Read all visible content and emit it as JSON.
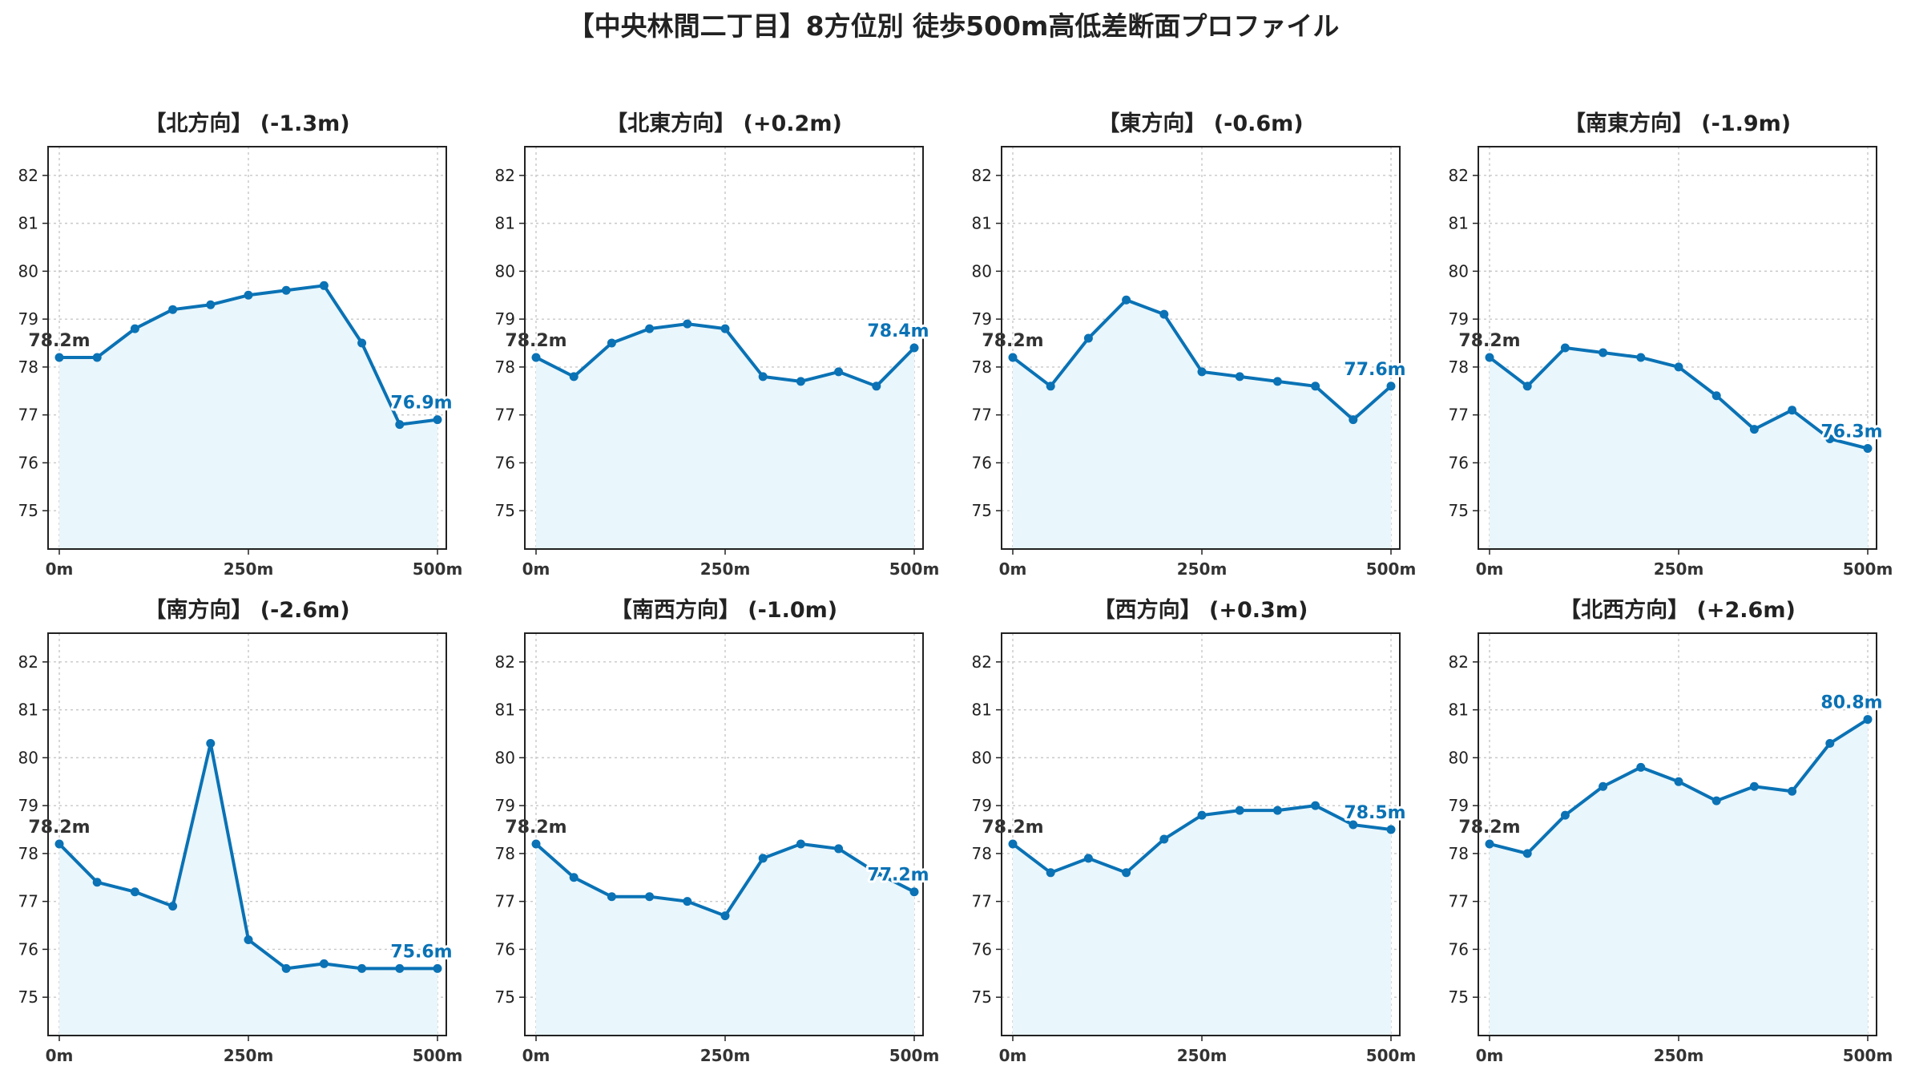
{
  "title": "【中央林間二丁目】8方位別 徒歩500m高低差断面プロファイル",
  "colors": {
    "line": "#0a72b5",
    "fill": "#e9f6fb",
    "start_label": "#333333",
    "end_label": "#0a72b5"
  },
  "chart_data": [
    {
      "type": "line",
      "title": "【北方向】 (-1.3m)",
      "x": [
        0,
        50,
        100,
        150,
        200,
        250,
        300,
        350,
        400,
        450,
        500
      ],
      "values": [
        78.2,
        78.2,
        78.8,
        79.2,
        79.3,
        79.5,
        79.6,
        79.7,
        78.5,
        76.8,
        76.9
      ],
      "start_label": "78.2m",
      "end_label": "76.9m",
      "ylim": [
        74.2,
        82.6
      ],
      "yticks": [
        "75",
        "76",
        "77",
        "78",
        "79",
        "80",
        "81",
        "82"
      ],
      "xticks": [
        "0m",
        "250m",
        "500m"
      ],
      "grid": true
    },
    {
      "type": "line",
      "title": "【北東方向】 (+0.2m)",
      "x": [
        0,
        50,
        100,
        150,
        200,
        250,
        300,
        350,
        400,
        450,
        500
      ],
      "values": [
        78.2,
        77.8,
        78.5,
        78.8,
        78.9,
        78.8,
        77.8,
        77.7,
        77.9,
        77.6,
        78.4
      ],
      "start_label": "78.2m",
      "end_label": "78.4m",
      "ylim": [
        74.2,
        82.6
      ],
      "yticks": [
        "75",
        "76",
        "77",
        "78",
        "79",
        "80",
        "81",
        "82"
      ],
      "xticks": [
        "0m",
        "250m",
        "500m"
      ],
      "grid": true
    },
    {
      "type": "line",
      "title": "【東方向】 (-0.6m)",
      "x": [
        0,
        50,
        100,
        150,
        200,
        250,
        300,
        350,
        400,
        450,
        500
      ],
      "values": [
        78.2,
        77.6,
        78.6,
        79.4,
        79.1,
        77.9,
        77.8,
        77.7,
        77.6,
        76.9,
        77.6
      ],
      "start_label": "78.2m",
      "end_label": "77.6m",
      "ylim": [
        74.2,
        82.6
      ],
      "yticks": [
        "75",
        "76",
        "77",
        "78",
        "79",
        "80",
        "81",
        "82"
      ],
      "xticks": [
        "0m",
        "250m",
        "500m"
      ],
      "grid": true
    },
    {
      "type": "line",
      "title": "【南東方向】 (-1.9m)",
      "x": [
        0,
        50,
        100,
        150,
        200,
        250,
        300,
        350,
        400,
        450,
        500
      ],
      "values": [
        78.2,
        77.6,
        78.4,
        78.3,
        78.2,
        78.0,
        77.4,
        76.7,
        77.1,
        76.5,
        76.3
      ],
      "start_label": "78.2m",
      "end_label": "76.3m",
      "ylim": [
        74.2,
        82.6
      ],
      "yticks": [
        "75",
        "76",
        "77",
        "78",
        "79",
        "80",
        "81",
        "82"
      ],
      "xticks": [
        "0m",
        "250m",
        "500m"
      ],
      "grid": true
    },
    {
      "type": "line",
      "title": "【南方向】 (-2.6m)",
      "x": [
        0,
        50,
        100,
        150,
        200,
        250,
        300,
        350,
        400,
        450,
        500
      ],
      "values": [
        78.2,
        77.4,
        77.2,
        76.9,
        80.3,
        76.2,
        75.6,
        75.7,
        75.6,
        75.6,
        75.6
      ],
      "start_label": "78.2m",
      "end_label": "75.6m",
      "ylim": [
        74.2,
        82.6
      ],
      "yticks": [
        "75",
        "76",
        "77",
        "78",
        "79",
        "80",
        "81",
        "82"
      ],
      "xticks": [
        "0m",
        "250m",
        "500m"
      ],
      "grid": true
    },
    {
      "type": "line",
      "title": "【南西方向】 (-1.0m)",
      "x": [
        0,
        50,
        100,
        150,
        200,
        250,
        300,
        350,
        400,
        450,
        500
      ],
      "values": [
        78.2,
        77.5,
        77.1,
        77.1,
        77.0,
        76.7,
        77.9,
        78.2,
        78.1,
        77.6,
        77.2
      ],
      "start_label": "78.2m",
      "end_label": "77.2m",
      "ylim": [
        74.2,
        82.6
      ],
      "yticks": [
        "75",
        "76",
        "77",
        "78",
        "79",
        "80",
        "81",
        "82"
      ],
      "xticks": [
        "0m",
        "250m",
        "500m"
      ],
      "grid": true
    },
    {
      "type": "line",
      "title": "【西方向】 (+0.3m)",
      "x": [
        0,
        50,
        100,
        150,
        200,
        250,
        300,
        350,
        400,
        450,
        500
      ],
      "values": [
        78.2,
        77.6,
        77.9,
        77.6,
        78.3,
        78.8,
        78.9,
        78.9,
        79.0,
        78.6,
        78.5
      ],
      "start_label": "78.2m",
      "end_label": "78.5m",
      "ylim": [
        74.2,
        82.6
      ],
      "yticks": [
        "75",
        "76",
        "77",
        "78",
        "79",
        "80",
        "81",
        "82"
      ],
      "xticks": [
        "0m",
        "250m",
        "500m"
      ],
      "grid": true
    },
    {
      "type": "line",
      "title": "【北西方向】 (+2.6m)",
      "x": [
        0,
        50,
        100,
        150,
        200,
        250,
        300,
        350,
        400,
        450,
        500
      ],
      "values": [
        78.2,
        78.0,
        78.8,
        79.4,
        79.8,
        79.5,
        79.1,
        79.4,
        79.3,
        80.3,
        80.8
      ],
      "start_label": "78.2m",
      "end_label": "80.8m",
      "ylim": [
        74.2,
        82.6
      ],
      "yticks": [
        "75",
        "76",
        "77",
        "78",
        "79",
        "80",
        "81",
        "82"
      ],
      "xticks": [
        "0m",
        "250m",
        "500m"
      ],
      "grid": true
    }
  ]
}
